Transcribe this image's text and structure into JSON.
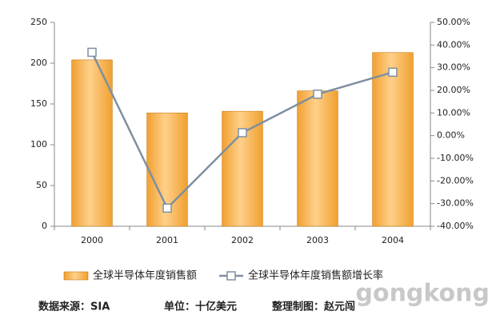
{
  "chart_data": {
    "type": "bar",
    "categories": [
      "2000",
      "2001",
      "2002",
      "2003",
      "2004"
    ],
    "series": [
      {
        "name": "全球半导体年度销售额",
        "type": "bar",
        "color": "#f0a030",
        "values": [
          204,
          139,
          141,
          166,
          213
        ]
      },
      {
        "name": "全球半导体年度销售额增长率",
        "type": "line",
        "axis": "y2",
        "color": "#7f8fa0",
        "values": [
          36.8,
          -32,
          1.3,
          18.3,
          28
        ]
      }
    ],
    "ylim": [
      0,
      250
    ],
    "yticks": [
      0,
      50,
      100,
      150,
      200,
      250
    ],
    "y2lim": [
      -40,
      50
    ],
    "y2ticks": [
      {
        "value": -40,
        "label": "-40.00%"
      },
      {
        "value": -30,
        "label": "-30.00%"
      },
      {
        "value": -20,
        "label": "-20.00%"
      },
      {
        "value": -10,
        "label": "-10.00%"
      },
      {
        "value": 0,
        "label": "0.00%"
      },
      {
        "value": 10,
        "label": "10.00%"
      },
      {
        "value": 20,
        "label": "20.00%"
      },
      {
        "value": 30,
        "label": "30.00%"
      },
      {
        "value": 40,
        "label": "40.00%"
      },
      {
        "value": 50,
        "label": "50.00%"
      }
    ],
    "grid": false,
    "legend": "bottom"
  },
  "footer": [
    "数据来源：SIA",
    "单位：十亿美元",
    "整理制图：赵元闯"
  ],
  "watermark": "gongkong"
}
